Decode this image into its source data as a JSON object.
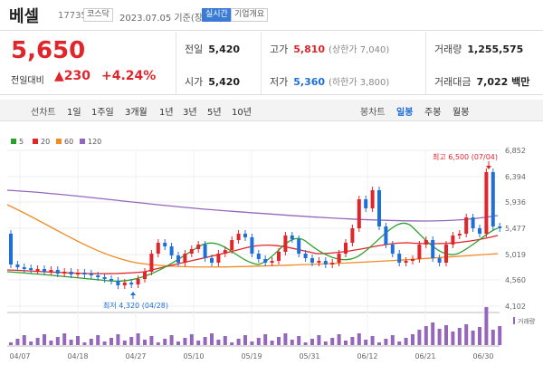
{
  "header": {
    "name": "베셀",
    "code": "177350",
    "market": "코스닥",
    "date_label": "2023.07.05 기준(장마감)",
    "realtime": "실시간",
    "overview": "기업개요"
  },
  "quote": {
    "price": "5,650",
    "change_label": "전일대비",
    "change_arrow": "▲",
    "change": "230",
    "change_pct": "+4.24%",
    "prev_label": "전일",
    "prev": "5,420",
    "open_label": "시가",
    "open": "5,420",
    "high_label": "고가",
    "high": "5,810",
    "upper_label": "(상한가 7,040)",
    "low_label": "저가",
    "low": "5,360",
    "lower_label": "(하한가 3,800)",
    "volume_label": "거래량",
    "volume": "1,255,575",
    "amount_label": "거래대금",
    "amount": "7,022 백만"
  },
  "tabs": {
    "line_label": "선차트",
    "line_items": [
      "1일",
      "1주일",
      "3개월",
      "1년",
      "3년",
      "5년",
      "10년"
    ],
    "candle_label": "봉차트",
    "candle_items": [
      "일봉",
      "주봉",
      "월봉"
    ],
    "active_candle": "일봉"
  },
  "chart_data": {
    "type": "candlestick",
    "legend": [
      {
        "name": "5",
        "color": "#2ca02c"
      },
      {
        "name": "20",
        "color": "#e0262b"
      },
      {
        "name": "60",
        "color": "#f08a24"
      },
      {
        "name": "120",
        "color": "#9467bd"
      }
    ],
    "y_ticks": [
      "6,852",
      "6,394",
      "5,936",
      "5,477",
      "5,019",
      "4,560",
      "4,102"
    ],
    "ylim": [
      4102,
      6852
    ],
    "x_ticks": [
      "04/07",
      "04/18",
      "04/27",
      "05/10",
      "05/19",
      "05/31",
      "06/12",
      "06/21",
      "06/30"
    ],
    "max_label": "최고 6,500 (07/04)",
    "min_label": "최저 4,320 (04/28)",
    "volume_label": "거래량",
    "up_color": "#e0262b",
    "down_color": "#1e6fd9"
  }
}
